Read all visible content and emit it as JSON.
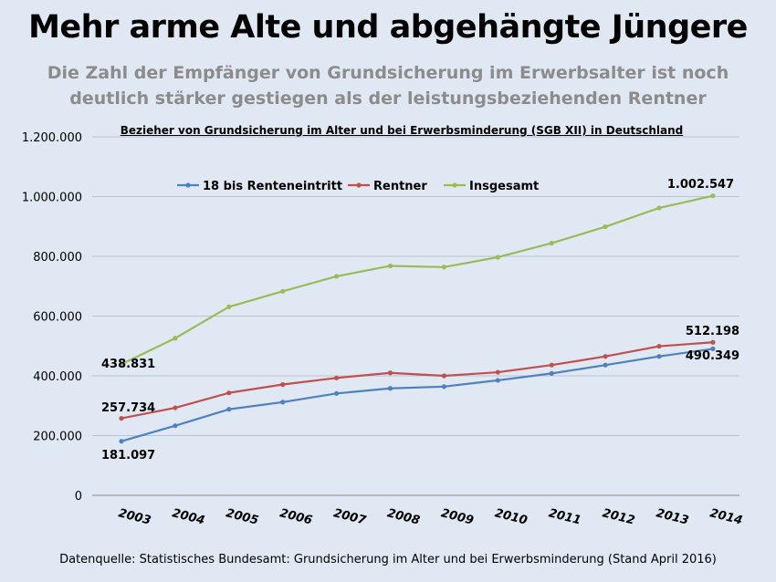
{
  "title": "Mehr arme Alte und abgehängte Jüngere",
  "subtitle_line1": "Die Zahl der Empfänger von Grundsicherung im Erwerbsalter ist noch",
  "subtitle_line2": "deutlich stärker gestiegen als der leistungsbeziehenden Rentner",
  "source": "Datenquelle: Statistisches Bundesamt: Grundsicherung im Alter und bei Erwerbsminderung (Stand April 2016)",
  "chart_data": {
    "type": "line",
    "title": "Bezieher von Grundsicherung im Alter und bei Erwerbsminderung (SGB XII) in Deutschland",
    "xlabel": "",
    "ylabel": "",
    "ylim": [
      0,
      1200000
    ],
    "yticks": [
      0,
      200000,
      400000,
      600000,
      800000,
      1000000,
      1200000
    ],
    "ytick_labels": [
      "0",
      "200.000",
      "400.000",
      "600.000",
      "800.000",
      "1.000.000",
      "1.200.000"
    ],
    "grid": "horizontal",
    "legend_position": "top-left",
    "categories": [
      "2003",
      "2004",
      "2005",
      "2006",
      "2007",
      "2008",
      "2009",
      "2010",
      "2011",
      "2012",
      "2013",
      "2014"
    ],
    "series": [
      {
        "name": "18 bis Renteneintritt",
        "color": "#4f81bd",
        "values": [
          181097,
          233000,
          288000,
          312000,
          341000,
          358000,
          364000,
          385000,
          408000,
          436000,
          465000,
          490349
        ]
      },
      {
        "name": "Rentner",
        "color": "#c0504d",
        "values": [
          257734,
          293000,
          343000,
          371000,
          393000,
          410000,
          400000,
          412000,
          436000,
          465000,
          499000,
          512198
        ]
      },
      {
        "name": "Insgesamt",
        "color": "#9bbb59",
        "values": [
          438831,
          526000,
          631000,
          683000,
          733000,
          768000,
          764000,
          797000,
          844000,
          899000,
          962000,
          1002547
        ]
      }
    ],
    "annotations": [
      {
        "text": "438.831",
        "series": 2,
        "index": 0
      },
      {
        "text": "257.734",
        "series": 1,
        "index": 0
      },
      {
        "text": "181.097",
        "series": 0,
        "index": 0
      },
      {
        "text": "1.002.547",
        "series": 2,
        "index": 11
      },
      {
        "text": "512.198",
        "series": 1,
        "index": 11
      },
      {
        "text": "490.349",
        "series": 0,
        "index": 11
      }
    ]
  }
}
